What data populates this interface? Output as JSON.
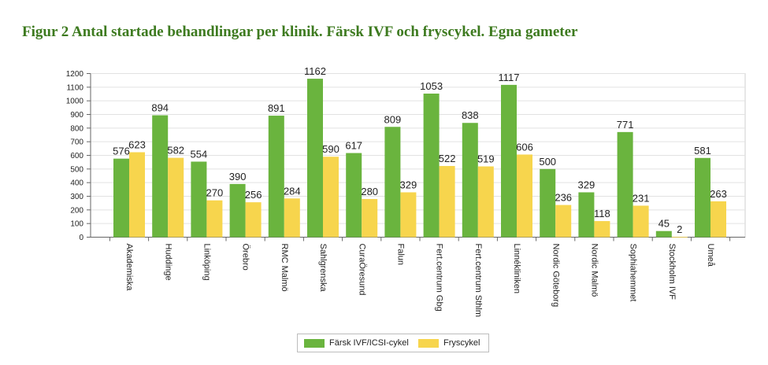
{
  "figure": {
    "title": "Figur 2 Antal startade behandlingar per klinik. Färsk IVF och fryscykel. Egna gameter"
  },
  "colors": {
    "title": "#3d7a1f",
    "series_fresh": "#6ab43e",
    "series_frozen": "#f7d54d",
    "grid": "#e2e2e2",
    "axis": "#666666"
  },
  "chart_data": {
    "type": "bar",
    "categories": [
      "Akademiska",
      "Huddinge",
      "Linköping",
      "Örebro",
      "RMC Malmö",
      "Sahlgrenska",
      "CuraÖresund",
      "Falun",
      "Fert.centrum Gbg",
      "Fert.centrum Sthlm",
      "Linnékliniken",
      "Nordic Göteborg",
      "Nordic Malmö",
      "Sophiahemmet",
      "Stockholm IVF",
      "Umeå"
    ],
    "series": [
      {
        "name": "Färsk IVF/ICSI-cykel",
        "color": "#6ab43e",
        "values": [
          576,
          894,
          554,
          390,
          891,
          1162,
          617,
          809,
          1053,
          838,
          1117,
          500,
          329,
          771,
          45,
          581
        ]
      },
      {
        "name": "Fryscykel",
        "color": "#f7d54d",
        "values": [
          623,
          582,
          270,
          256,
          284,
          590,
          280,
          329,
          522,
          519,
          606,
          236,
          118,
          231,
          2,
          263
        ]
      }
    ],
    "ylim": [
      0,
      1200
    ],
    "yticks": [
      0,
      100,
      200,
      300,
      400,
      500,
      600,
      700,
      800,
      900,
      1000,
      1100,
      1200
    ],
    "grid": true,
    "legend_position": "bottom",
    "data_labels": true
  }
}
